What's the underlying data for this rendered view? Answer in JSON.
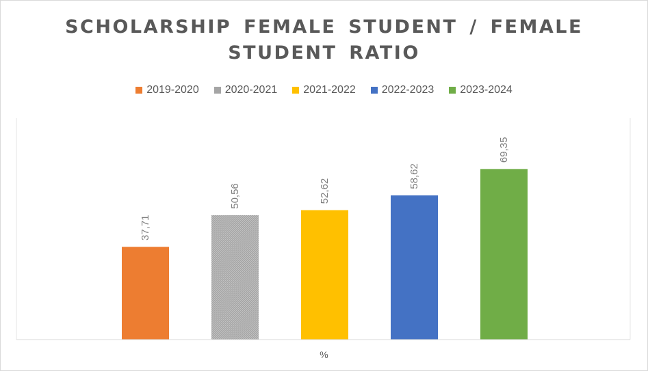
{
  "chart_data": {
    "type": "bar",
    "title_lines": [
      "SCHOLARSHIP FEMALE STUDENT / FEMALE",
      "STUDENT RATIO"
    ],
    "xlabel": "%",
    "ylim": [
      0,
      90
    ],
    "grid": false,
    "legend_position": "top",
    "categories": [
      "%"
    ],
    "series": [
      {
        "name": "2019-2020",
        "label": "37,71",
        "value": 37.71,
        "color": "#ED7D31",
        "pattern": "solid"
      },
      {
        "name": "2020-2021",
        "label": "50,56",
        "value": 50.56,
        "color": "#A5A5A5",
        "pattern": "hatched"
      },
      {
        "name": "2021-2022",
        "label": "52,62",
        "value": 52.62,
        "color": "#FFC000",
        "pattern": "solid"
      },
      {
        "name": "2022-2023",
        "label": "58,62",
        "value": 58.62,
        "color": "#4472C4",
        "pattern": "solid"
      },
      {
        "name": "2023-2024",
        "label": "69,35",
        "value": 69.35,
        "color": "#70AD47",
        "pattern": "solid"
      }
    ]
  }
}
